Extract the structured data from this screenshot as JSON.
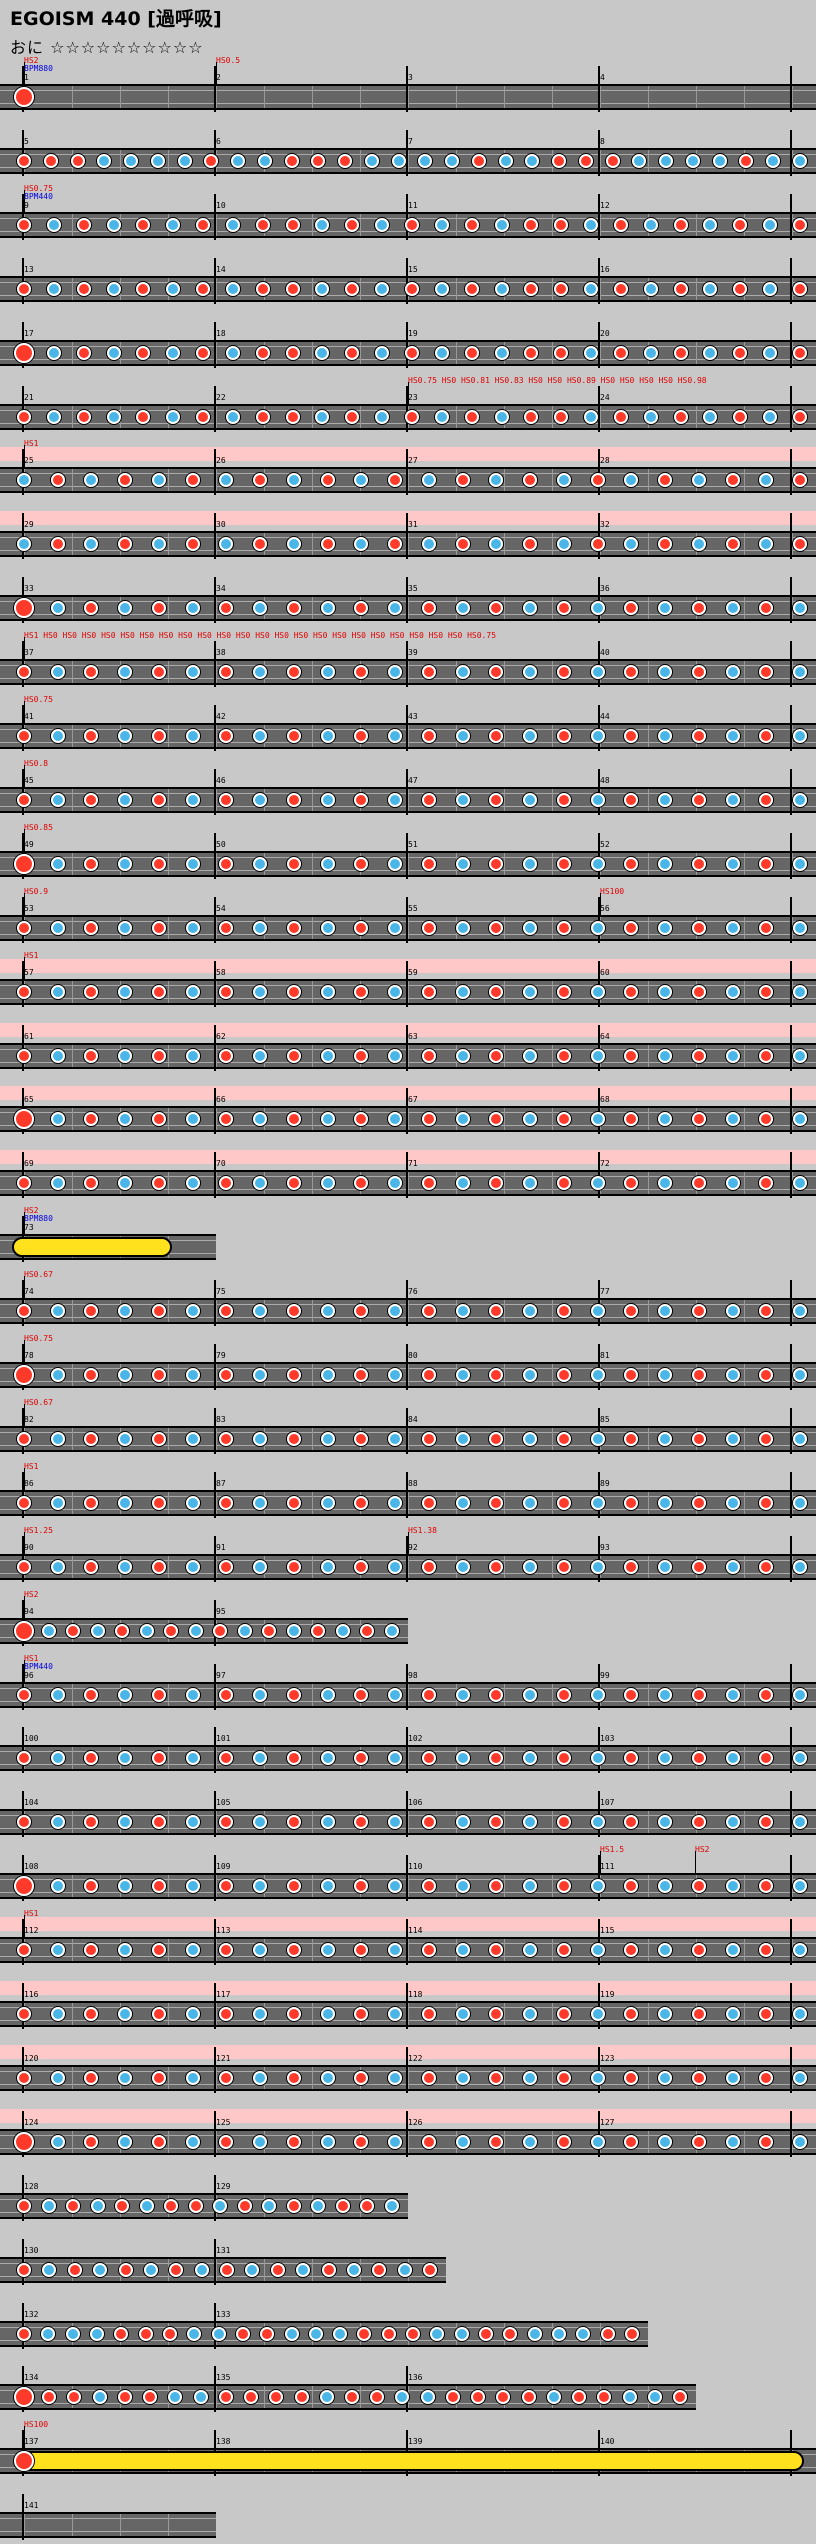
{
  "header": {
    "title": "EGOISM 440 [過呼吸]",
    "difficulty_label": "おに",
    "stars": "☆☆☆☆☆☆☆☆☆☆"
  },
  "colors": {
    "don": "#ff3a2a",
    "ka": "#4ab6e8",
    "roll": "#ffe11e",
    "gogo_band": "#ffc8c8",
    "lane": "#666666"
  },
  "rows": [
    {
      "measures": [
        1,
        2,
        3,
        4
      ],
      "labels": [
        {
          "t": "HS2",
          "c": "red",
          "m": 0
        },
        {
          "t": "BPM880",
          "c": "blue",
          "m": 0,
          "line": 2
        },
        {
          "t": "HS0.5",
          "c": "red",
          "m": 1
        }
      ],
      "notes": "D"
    },
    {
      "measures": [
        5,
        6,
        7,
        8
      ],
      "notes": "DDDKKKKDKK"
    },
    {
      "measures": [
        9,
        10,
        11,
        12
      ],
      "labels": [
        {
          "t": "HS0.75",
          "c": "red",
          "m": 0
        },
        {
          "t": "BPM440",
          "c": "blue",
          "m": 0,
          "line": 2
        }
      ],
      "notes": "DKDKDKDKD"
    },
    {
      "measures": [
        13,
        14,
        15,
        16
      ],
      "notes": "DKDKDKDKD"
    },
    {
      "measures": [
        17,
        18,
        19,
        20
      ],
      "notes": "DKDKDKDKD"
    },
    {
      "measures": [
        21,
        22,
        23,
        24
      ],
      "labels": [
        {
          "t": "HS0.75  HS0  HS0.81  HS0.83  HS0 HS0 HS0.89  HS0 HS0 HS0 HS0 HS0.98",
          "c": "red",
          "m": 2
        }
      ],
      "notes": "DKDKDKDKD"
    },
    {
      "measures": [
        25,
        26,
        27,
        28
      ],
      "gogo": true,
      "labels": [
        {
          "t": "HS1",
          "c": "red",
          "m": 0
        }
      ],
      "notes": "KDKDKDKD"
    },
    {
      "measures": [
        29,
        30,
        31,
        32
      ],
      "gogo": true,
      "notes": "KDKDKDKD"
    },
    {
      "measures": [
        33,
        34,
        35,
        36
      ],
      "notes": "DKDKDKDK"
    },
    {
      "measures": [
        37,
        38,
        39,
        40
      ],
      "labels": [
        {
          "t": "HS1 HS0 HS0 HS0 HS0 HS0 HS0 HS0 HS0 HS0 HS0 HS0 HS0 HS0 HS0 HS0 HS0 HS0 HS0 HS0 HS0 HS0 HS0 HS0.75",
          "c": "red",
          "m": 0
        }
      ],
      "notes": "DKDKDKDK"
    },
    {
      "measures": [
        41,
        42,
        43,
        44
      ],
      "labels": [
        {
          "t": "HS0.75",
          "c": "red",
          "m": 0
        }
      ],
      "notes": "DKDKDKDK"
    },
    {
      "measures": [
        45,
        46,
        47,
        48
      ],
      "labels": [
        {
          "t": "HS0.8",
          "c": "red",
          "m": 0
        }
      ],
      "notes": "DKDKDKDK"
    },
    {
      "measures": [
        49,
        50,
        51,
        52
      ],
      "labels": [
        {
          "t": "HS0.85",
          "c": "red",
          "m": 0
        }
      ],
      "notes": "DKDKDKDK"
    },
    {
      "measures": [
        53,
        54,
        55,
        56
      ],
      "labels": [
        {
          "t": "HS0.9",
          "c": "red",
          "m": 0
        },
        {
          "t": "HS100",
          "c": "red",
          "m": 3
        }
      ],
      "notes": "DKDKDKDK"
    },
    {
      "measures": [
        57,
        58,
        59,
        60
      ],
      "gogo": true,
      "labels": [
        {
          "t": "HS1",
          "c": "red",
          "m": 0
        }
      ],
      "notes": "DKDKDKDK"
    },
    {
      "measures": [
        61,
        62,
        63,
        64
      ],
      "gogo": true,
      "notes": "DKDKDKDK"
    },
    {
      "measures": [
        65,
        66,
        67,
        68
      ],
      "gogo": true,
      "notes": "DKDKDKDK"
    },
    {
      "measures": [
        69,
        70,
        71,
        72
      ],
      "gogo": true,
      "notes": "DKDKDKDK"
    },
    {
      "measures": [
        73
      ],
      "short": 1,
      "labels": [
        {
          "t": "HS2",
          "c": "red",
          "m": 0
        },
        {
          "t": "BPM880",
          "c": "blue",
          "m": 0,
          "line": 2
        }
      ],
      "notes": "roll"
    },
    {
      "measures": [
        74,
        75,
        76,
        77
      ],
      "labels": [
        {
          "t": "HS0.67",
          "c": "red",
          "m": 0
        }
      ],
      "notes": "DKDKDKDK"
    },
    {
      "measures": [
        78,
        79,
        80,
        81
      ],
      "labels": [
        {
          "t": "HS0.75",
          "c": "red",
          "m": 0
        }
      ],
      "notes": "DKDKDKDK"
    },
    {
      "measures": [
        82,
        83,
        84,
        85
      ],
      "labels": [
        {
          "t": "HS0.67",
          "c": "red",
          "m": 0
        }
      ],
      "notes": "DKDKDKDK"
    },
    {
      "measures": [
        86,
        87,
        88,
        89
      ],
      "labels": [
        {
          "t": "HS1",
          "c": "red",
          "m": 0
        }
      ],
      "notes": "DKDKDKDK"
    },
    {
      "measures": [
        90,
        91,
        92,
        93
      ],
      "labels": [
        {
          "t": "HS1.25",
          "c": "red",
          "m": 0
        },
        {
          "t": "HS1.38",
          "c": "red",
          "m": 2
        }
      ],
      "notes": "DKDKDKDK"
    },
    {
      "measures": [
        94,
        95
      ],
      "short": 2,
      "labels": [
        {
          "t": "HS2",
          "c": "red",
          "m": 0
        }
      ],
      "notes": "DKDKDKDK"
    },
    {
      "measures": [
        96,
        97,
        98,
        99
      ],
      "labels": [
        {
          "t": "HS1",
          "c": "red",
          "m": 0
        },
        {
          "t": "BPM440",
          "c": "blue",
          "m": 0,
          "line": 2
        }
      ],
      "notes": "DKDKDKDK"
    },
    {
      "measures": [
        100,
        101,
        102,
        103
      ],
      "notes": "DKDKDKDK"
    },
    {
      "measures": [
        104,
        105,
        106,
        107
      ],
      "notes": "DKDKDKDK"
    },
    {
      "measures": [
        108,
        109,
        110,
        111
      ],
      "labels": [
        {
          "t": "HS1.5",
          "c": "red",
          "m": 3
        },
        {
          "t": "HS2",
          "c": "red",
          "m": 3,
          "dx": 95
        }
      ],
      "notes": "DKDKDKDK"
    },
    {
      "measures": [
        112,
        113,
        114,
        115
      ],
      "gogo": true,
      "labels": [
        {
          "t": "HS1",
          "c": "red",
          "m": 0
        }
      ],
      "notes": "DKDKDKDK"
    },
    {
      "measures": [
        116,
        117,
        118,
        119
      ],
      "gogo": true,
      "notes": "DKDKDKDK"
    },
    {
      "measures": [
        120,
        121,
        122,
        123
      ],
      "gogo": true,
      "notes": "DKDKDKDK"
    },
    {
      "measures": [
        124,
        125,
        126,
        127
      ],
      "gogo": true,
      "notes": "DKDKDKDK"
    },
    {
      "measures": [
        128,
        129
      ],
      "short": 2,
      "notes": "DKDKDKD"
    },
    {
      "measures": [
        130,
        131
      ],
      "short": 2.2,
      "notes": "DKDKDKDK"
    },
    {
      "measures": [
        132,
        133
      ],
      "short": 3.25,
      "notes": "DKKKDDDKKD"
    },
    {
      "measures": [
        134,
        135,
        136
      ],
      "short": 3.5,
      "notes": "DDDKDDKKD"
    },
    {
      "measures": [
        137,
        138,
        139,
        140
      ],
      "labels": [
        {
          "t": "HS100",
          "c": "red",
          "m": 0
        }
      ],
      "notes": "longroll"
    },
    {
      "measures": [
        141
      ],
      "short": 1,
      "notes": ""
    }
  ]
}
